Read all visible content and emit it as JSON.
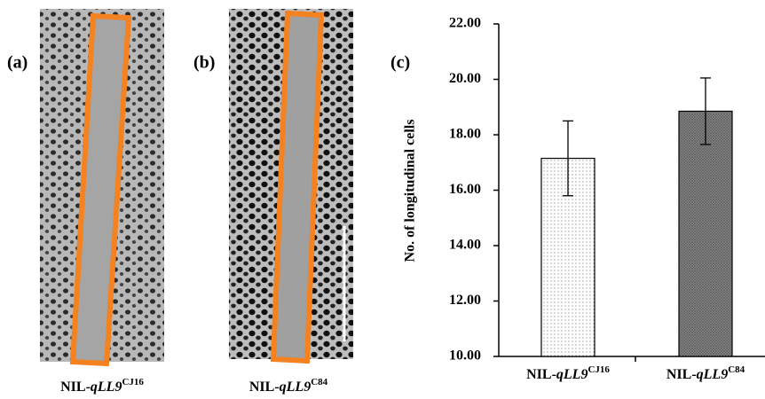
{
  "panels": {
    "a": "(a)",
    "b": "(b)"
  },
  "captions": [
    [
      "NIL-",
      "qLL9",
      "CJ16"
    ],
    [
      "NIL-",
      "qLL9",
      "C84"
    ]
  ],
  "chart_data": {
    "type": "bar",
    "panel_label": "(c)",
    "y_label": "No. of longitudinal cells",
    "categories": [
      [
        "NIL-",
        "qLL9",
        "CJ16"
      ],
      [
        "NIL-",
        "qLL9",
        "C84"
      ]
    ],
    "values": [
      17.15,
      18.85
    ],
    "errors": [
      1.35,
      1.2
    ],
    "ylim": [
      10,
      22
    ],
    "yticks": [
      {
        "value": 10,
        "label": "10.00"
      },
      {
        "value": 12,
        "label": "12.00"
      },
      {
        "value": 14,
        "label": "14.00"
      },
      {
        "value": 16,
        "label": "16.00"
      },
      {
        "value": 18,
        "label": "18.00"
      },
      {
        "value": 20,
        "label": "20.00"
      },
      {
        "value": 22,
        "label": "22.00"
      }
    ]
  }
}
